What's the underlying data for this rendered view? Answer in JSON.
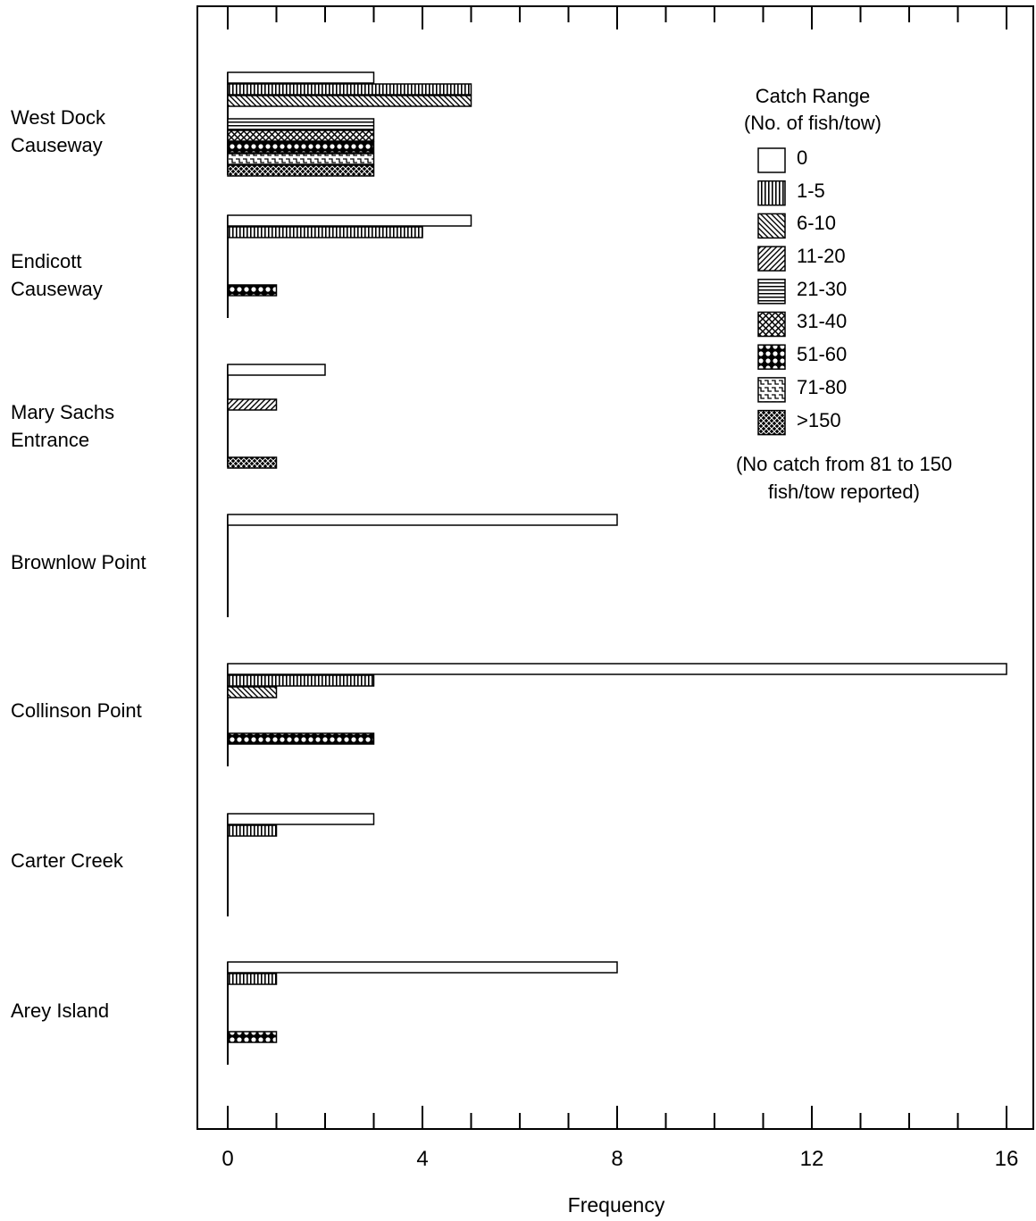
{
  "chart_data": {
    "type": "bar",
    "orientation": "horizontal",
    "xlabel": "Frequency",
    "ylabel": "",
    "xlim": [
      0,
      16
    ],
    "xticks": [
      0,
      4,
      8,
      12,
      16
    ],
    "legend_title": [
      "Catch Range",
      "(No. of fish/tow)"
    ],
    "legend_note": "(No catch from 81 to 150\nfish/tow reported)",
    "legend_position": "top-right",
    "grid": false,
    "categories": [
      "West Dock\nCauseway",
      "Endicott\nCauseway",
      "Mary Sachs\nEntrance",
      "Brownlow Point",
      "Collinson Point",
      "Carter Creek",
      "Arey Island"
    ],
    "series": [
      {
        "name": "0",
        "pattern": "blank",
        "values": [
          3,
          5,
          2,
          8,
          16,
          3,
          8
        ]
      },
      {
        "name": "1-5",
        "pattern": "vertical",
        "values": [
          5,
          4,
          0,
          0,
          3,
          1,
          1
        ]
      },
      {
        "name": "6-10",
        "pattern": "diag-down",
        "values": [
          5,
          0,
          0,
          0,
          1,
          0,
          0
        ]
      },
      {
        "name": "11-20",
        "pattern": "diag-up",
        "values": [
          0,
          0,
          1,
          0,
          0,
          0,
          0
        ]
      },
      {
        "name": "21-30",
        "pattern": "horizontal",
        "values": [
          3,
          0,
          0,
          0,
          0,
          0,
          0
        ]
      },
      {
        "name": "31-40",
        "pattern": "crosshatch",
        "values": [
          3,
          0,
          0,
          0,
          0,
          0,
          0
        ]
      },
      {
        "name": "51-60",
        "pattern": "circles",
        "values": [
          3,
          1,
          0,
          0,
          3,
          0,
          1
        ]
      },
      {
        "name": "71-80",
        "pattern": "steps",
        "values": [
          3,
          0,
          0,
          0,
          0,
          0,
          0
        ]
      },
      {
        "name": ">150",
        "pattern": "dense",
        "values": [
          3,
          0,
          1,
          0,
          0,
          0,
          0
        ]
      }
    ]
  }
}
